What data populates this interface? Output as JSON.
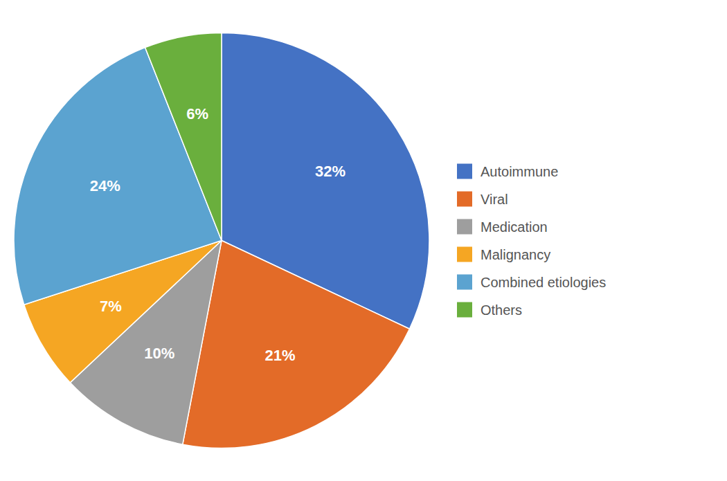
{
  "chart_data": {
    "type": "pie",
    "categories": [
      "Autoimmune",
      "Viral",
      "Medication",
      "Malignancy",
      "Combined etiologies",
      "Others"
    ],
    "values": [
      32,
      21,
      10,
      7,
      24,
      6
    ],
    "value_labels": [
      "32%",
      "21%",
      "10%",
      "7%",
      "24%",
      "6%"
    ],
    "colors": [
      "#4472C4",
      "#E36B28",
      "#9E9E9E",
      "#F5A623",
      "#5BA3D0",
      "#6AAF3D"
    ],
    "data_labels": true,
    "legend": "right"
  }
}
